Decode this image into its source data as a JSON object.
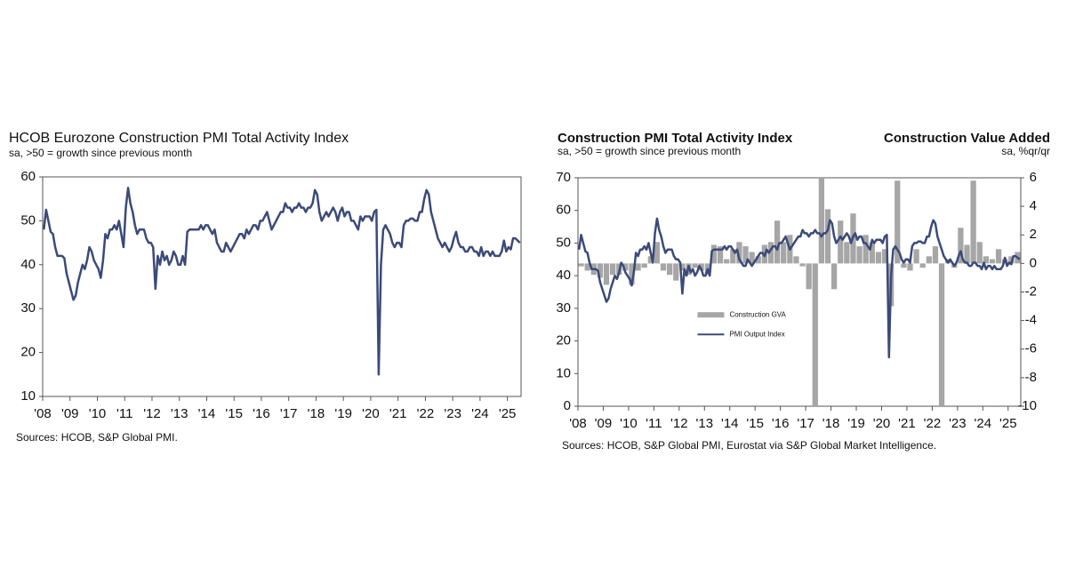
{
  "chart_data": [
    {
      "type": "line",
      "title": "HCOB Eurozone Construction PMI Total Activity Index",
      "subtitle": "sa, >50 = growth since previous month",
      "source": "Sources: HCOB, S&P Global PMI.",
      "color": "#3b4a78",
      "ylim": [
        10,
        60
      ],
      "yticks": [
        10,
        20,
        30,
        40,
        50,
        60
      ],
      "categories": [
        "'08",
        null,
        null,
        null,
        null,
        null,
        null,
        null,
        null,
        null,
        null,
        null,
        "'09",
        null,
        null,
        null,
        null,
        null,
        null,
        null,
        null,
        null,
        null,
        null,
        "'10",
        null,
        null,
        null,
        null,
        null,
        null,
        null,
        null,
        null,
        null,
        null,
        "'11",
        null,
        null,
        null,
        null,
        null,
        null,
        null,
        null,
        null,
        null,
        null,
        "'12",
        null,
        null,
        null,
        null,
        null,
        null,
        null,
        null,
        null,
        null,
        null,
        "'13",
        null,
        null,
        null,
        null,
        null,
        null,
        null,
        null,
        null,
        null,
        null,
        "'14",
        null,
        null,
        null,
        null,
        null,
        null,
        null,
        null,
        null,
        null,
        null,
        "'15",
        null,
        null,
        null,
        null,
        null,
        null,
        null,
        null,
        null,
        null,
        null,
        "'16",
        null,
        null,
        null,
        null,
        null,
        null,
        null,
        null,
        null,
        null,
        null,
        "'17",
        null,
        null,
        null,
        null,
        null,
        null,
        null,
        null,
        null,
        null,
        null,
        "'18",
        null,
        null,
        null,
        null,
        null,
        null,
        null,
        null,
        null,
        null,
        null,
        "'19",
        null,
        null,
        null,
        null,
        null,
        null,
        null,
        null,
        null,
        null,
        null,
        "'20",
        null,
        null,
        null,
        null,
        null,
        null,
        null,
        null,
        null,
        null,
        null,
        "'21",
        null,
        null,
        null,
        null,
        null,
        null,
        null,
        null,
        null,
        null,
        null,
        "'22",
        null,
        null,
        null,
        null,
        null,
        null,
        null,
        null,
        null,
        null,
        null,
        "'23",
        null,
        null,
        null,
        null,
        null,
        null,
        null,
        null,
        null,
        null,
        null,
        "'24",
        null,
        null,
        null,
        null,
        null,
        null,
        null,
        null,
        null,
        null,
        null,
        "'25",
        null,
        null,
        null,
        null,
        null
      ],
      "values": [
        48,
        52.5,
        50,
        47.5,
        47,
        44,
        42,
        42,
        42,
        41.5,
        38,
        36,
        34,
        32,
        33,
        36,
        38,
        40,
        39,
        41,
        44,
        43,
        41,
        40,
        39,
        37,
        41,
        47,
        46,
        48,
        48,
        49,
        48,
        50,
        47,
        44,
        53,
        57.5,
        54,
        52,
        49,
        47,
        48,
        48,
        48,
        46,
        45,
        45,
        44,
        34.5,
        42,
        40,
        43,
        41,
        42,
        40,
        41,
        43,
        42,
        40,
        40,
        42,
        40,
        47.5,
        48,
        48,
        48,
        48,
        48,
        49,
        48,
        49,
        49,
        48,
        47,
        48,
        45,
        44,
        43,
        43,
        45,
        44,
        43,
        44,
        45,
        46,
        47,
        47,
        46,
        48,
        47,
        48,
        49,
        49,
        48,
        50,
        50,
        51,
        52,
        50,
        48,
        49,
        50,
        51,
        52,
        52,
        54,
        53,
        53,
        52,
        53,
        53,
        54,
        53,
        53,
        52,
        53,
        53,
        54,
        57,
        56,
        52,
        50,
        51,
        52,
        51,
        52,
        53,
        52,
        50,
        52,
        53,
        51,
        52,
        52,
        50,
        50,
        49,
        48,
        51,
        50,
        51,
        51,
        51,
        50,
        52,
        52.5,
        15,
        40,
        48,
        49,
        48,
        47,
        45,
        44,
        45,
        45,
        44,
        49,
        50,
        50,
        50.5,
        50.5,
        50,
        50,
        52,
        52,
        55,
        57,
        56,
        52,
        50,
        48,
        46,
        45,
        44,
        45,
        44,
        43,
        44,
        46,
        47.5,
        45,
        44,
        44,
        43,
        43,
        44,
        44,
        43,
        43,
        42,
        44,
        42,
        43,
        43,
        42,
        43,
        42,
        42,
        42,
        43,
        45.5,
        43,
        44,
        43.5,
        46,
        46,
        45.5,
        45
      ]
    },
    {
      "type": "combo",
      "title": "Construction PMI Total Activity Index",
      "subtitle": "sa, >50 = growth since previous month",
      "y2_title": "Construction Value Added",
      "y2_subtitle": "sa, %qr/qr",
      "source": "Sources: HCOB, S&P Global PMI, Eurostat via S&P Global Market Intelligence.",
      "legend": "center",
      "ylim": [
        0,
        70
      ],
      "yticks": [
        0,
        10,
        20,
        30,
        40,
        50,
        60,
        70
      ],
      "y2lim": [
        -10,
        6
      ],
      "y2ticks": [
        -10,
        -8,
        -6,
        -4,
        -2,
        0,
        2,
        4,
        6
      ],
      "categories": [
        "'08",
        null,
        null,
        null,
        null,
        null,
        null,
        null,
        null,
        null,
        null,
        null,
        "'09",
        null,
        null,
        null,
        null,
        null,
        null,
        null,
        null,
        null,
        null,
        null,
        "'10",
        null,
        null,
        null,
        null,
        null,
        null,
        null,
        null,
        null,
        null,
        null,
        "'11",
        null,
        null,
        null,
        null,
        null,
        null,
        null,
        null,
        null,
        null,
        null,
        "'12",
        null,
        null,
        null,
        null,
        null,
        null,
        null,
        null,
        null,
        null,
        null,
        "'13",
        null,
        null,
        null,
        null,
        null,
        null,
        null,
        null,
        null,
        null,
        null,
        "'14",
        null,
        null,
        null,
        null,
        null,
        null,
        null,
        null,
        null,
        null,
        null,
        "'15",
        null,
        null,
        null,
        null,
        null,
        null,
        null,
        null,
        null,
        null,
        null,
        "'16",
        null,
        null,
        null,
        null,
        null,
        null,
        null,
        null,
        null,
        null,
        null,
        "'17",
        null,
        null,
        null,
        null,
        null,
        null,
        null,
        null,
        null,
        null,
        null,
        "'18",
        null,
        null,
        null,
        null,
        null,
        null,
        null,
        null,
        null,
        null,
        null,
        "'19",
        null,
        null,
        null,
        null,
        null,
        null,
        null,
        null,
        null,
        null,
        null,
        "'20",
        null,
        null,
        null,
        null,
        null,
        null,
        null,
        null,
        null,
        null,
        null,
        "'21",
        null,
        null,
        null,
        null,
        null,
        null,
        null,
        null,
        null,
        null,
        null,
        "'22",
        null,
        null,
        null,
        null,
        null,
        null,
        null,
        null,
        null,
        null,
        null,
        "'23",
        null,
        null,
        null,
        null,
        null,
        null,
        null,
        null,
        null,
        null,
        null,
        "'24",
        null,
        null,
        null,
        null,
        null,
        null,
        null,
        null,
        null,
        null,
        null,
        "'25",
        null,
        null,
        null,
        null,
        null
      ],
      "series": [
        {
          "name": "Construction GVA",
          "type": "bar",
          "axis": "y2",
          "color": "#a6a6a6",
          "values": [
            null,
            -0.2,
            null,
            null,
            -0.5,
            null,
            null,
            -0.8,
            null,
            null,
            -1.0,
            null,
            null,
            -1.5,
            null,
            null,
            -0.8,
            null,
            null,
            -0.8,
            null,
            null,
            -0.5,
            null,
            null,
            -1.5,
            null,
            null,
            -0.5,
            null,
            null,
            -0.3,
            null,
            null,
            0.5,
            null,
            null,
            1.5,
            null,
            null,
            -0.5,
            null,
            null,
            -0.8,
            null,
            null,
            -1.2,
            null,
            null,
            -0.5,
            null,
            null,
            -0.8,
            null,
            null,
            -0.3,
            null,
            null,
            -0.5,
            null,
            null,
            -0.8,
            null,
            null,
            1.3,
            null,
            null,
            1.2,
            null,
            null,
            0.3,
            null,
            null,
            1.0,
            null,
            null,
            1.5,
            null,
            null,
            1.2,
            null,
            null,
            0.8,
            null,
            null,
            0.5,
            null,
            null,
            1.3,
            null,
            null,
            1.5,
            null,
            null,
            3.0,
            null,
            null,
            1.5,
            null,
            null,
            2.0,
            null,
            null,
            0.5,
            null,
            null,
            -0.2,
            null,
            null,
            -1.8,
            null,
            null,
            -10,
            null,
            null,
            6,
            null,
            null,
            3.8,
            null,
            null,
            -1.8,
            null,
            null,
            3.0,
            null,
            null,
            1.5,
            null,
            null,
            3.5,
            null,
            null,
            1.2,
            null,
            null,
            2.0,
            null,
            null,
            1.5,
            null,
            null,
            0.8,
            null,
            null,
            1.0,
            null,
            null,
            -3.0,
            null,
            null,
            5.8,
            null,
            null,
            -0.3,
            null,
            null,
            -0.5,
            null,
            null,
            1.0,
            null,
            null,
            -0.3,
            null,
            null,
            0.5,
            null,
            null,
            1.2,
            null,
            null,
            -10,
            null,
            null,
            0.3,
            null,
            null,
            -0.3,
            null,
            null,
            2.5,
            null,
            null,
            1.3,
            null,
            null,
            5.8,
            null,
            null,
            1.5,
            null,
            null,
            0.5,
            null,
            null,
            0.3,
            null,
            null,
            1.0,
            null,
            null,
            0.3,
            null,
            null,
            0.5,
            null,
            null,
            0.8,
            null
          ]
        },
        {
          "name": "PMI Output Index",
          "type": "line",
          "color": "#3b4a78",
          "values": [
            48,
            52.5,
            50,
            47.5,
            47,
            44,
            42,
            42,
            42,
            41.5,
            38,
            36,
            34,
            32,
            33,
            36,
            38,
            40,
            39,
            41,
            44,
            43,
            41,
            40,
            39,
            37,
            41,
            47,
            46,
            48,
            48,
            49,
            48,
            50,
            47,
            44,
            53,
            57.5,
            54,
            52,
            49,
            47,
            48,
            48,
            48,
            46,
            45,
            45,
            44,
            34.5,
            42,
            40,
            43,
            41,
            42,
            40,
            41,
            43,
            42,
            40,
            40,
            42,
            40,
            47.5,
            48,
            48,
            48,
            48,
            48,
            49,
            48,
            49,
            49,
            48,
            47,
            48,
            45,
            44,
            43,
            43,
            45,
            44,
            43,
            44,
            45,
            46,
            47,
            47,
            46,
            48,
            47,
            48,
            49,
            49,
            48,
            50,
            50,
            51,
            52,
            50,
            48,
            49,
            50,
            51,
            52,
            52,
            54,
            53,
            53,
            52,
            53,
            53,
            54,
            53,
            53,
            52,
            53,
            53,
            54,
            57,
            56,
            52,
            50,
            51,
            52,
            51,
            52,
            53,
            52,
            50,
            52,
            53,
            51,
            52,
            52,
            50,
            50,
            49,
            48,
            51,
            50,
            51,
            51,
            51,
            50,
            52,
            52.5,
            15,
            40,
            48,
            49,
            48,
            47,
            45,
            44,
            45,
            45,
            44,
            49,
            50,
            50,
            50.5,
            50.5,
            50,
            50,
            52,
            52,
            55,
            57,
            56,
            52,
            50,
            48,
            46,
            45,
            44,
            45,
            44,
            43,
            44,
            46,
            47.5,
            45,
            44,
            44,
            43,
            43,
            44,
            44,
            43,
            43,
            42,
            44,
            42,
            43,
            43,
            42,
            43,
            42,
            42,
            42,
            43,
            45.5,
            43,
            44,
            43.5,
            46,
            46,
            45.5,
            45
          ]
        }
      ]
    }
  ]
}
